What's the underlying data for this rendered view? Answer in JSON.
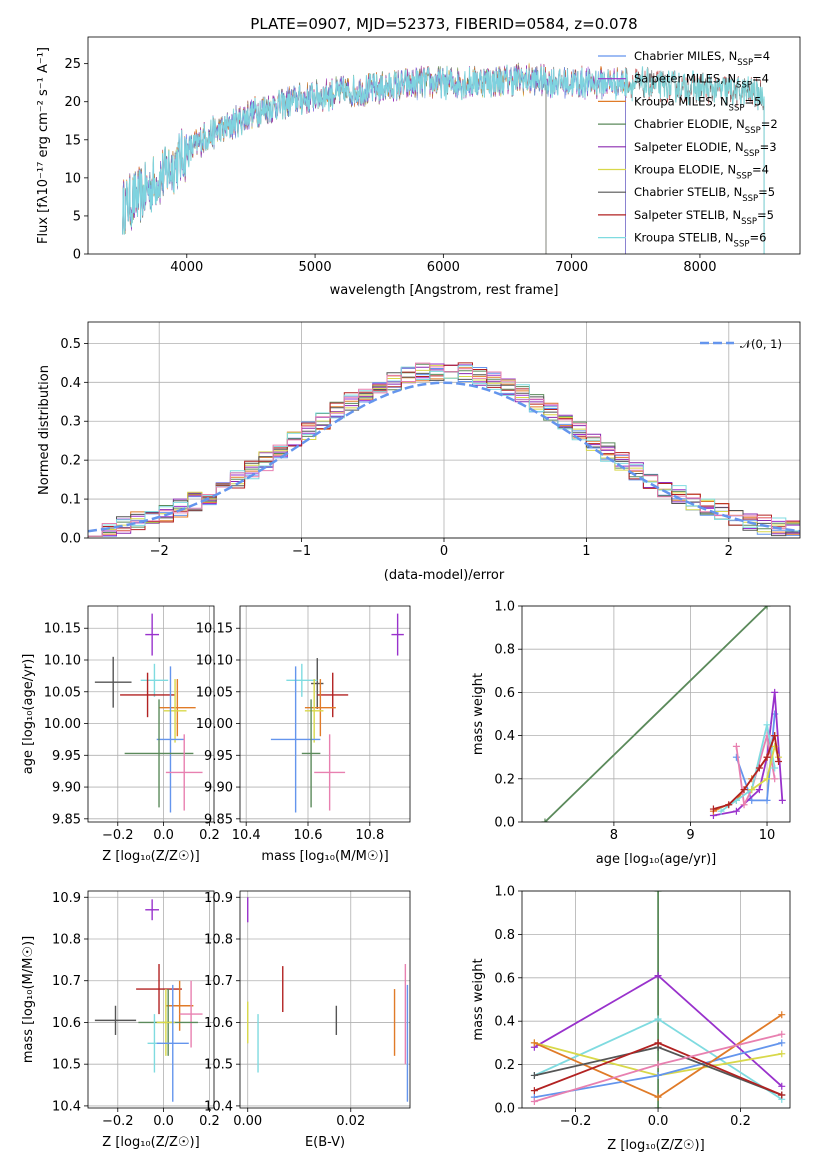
{
  "figure": {
    "title": "PLATE=0907, MJD=52373, FIBERID=0584, z=0.078"
  },
  "colors": {
    "Chabrier MILES": "#6495ED",
    "Salpeter MILES": "#9932CC",
    "Kroupa MILES": "#E07B28",
    "Chabrier ELODIE": "#5B8A5B",
    "Salpeter ELODIE": "#8B2BB0",
    "Kroupa ELODIE": "#D8D84A",
    "Chabrier STELIB": "#555555",
    "Salpeter STELIB": "#B22222",
    "Kroupa STELIB": "#7FDBE0",
    "pink": "#E880B0",
    "gauss": "#6495ED"
  },
  "chart_data": [
    {
      "type": "line",
      "name": "spectrum",
      "xlabel": "wavelength [Angstrom, rest frame]",
      "ylabel": "Flux [f_λ 10^-17 erg cm^-2 s^-1 A^-1]",
      "xlim": [
        3230,
        8780
      ],
      "ylim": [
        0,
        28.5
      ],
      "xticks": [
        4000,
        5000,
        6000,
        7000,
        8000
      ],
      "yticks": [
        0,
        5,
        10,
        15,
        20,
        25
      ],
      "grid": false,
      "legend_position": "right",
      "continuum_knots": {
        "x": [
          3500,
          3700,
          3850,
          3950,
          4050,
          4150,
          4300,
          4500,
          4800,
          5100,
          5400,
          5800,
          6200,
          6600,
          7000,
          7400,
          7800,
          8200,
          8500
        ],
        "y": [
          6,
          8.5,
          11,
          12.5,
          14,
          15.5,
          16.5,
          18.5,
          20,
          21,
          21.5,
          22.5,
          22.5,
          23,
          22.5,
          22.5,
          22,
          21.5,
          21
        ]
      },
      "series": [
        {
          "name": "Chabrier MILES",
          "legend": "Chabrier MILES, N_SSP=4",
          "end": 7420
        },
        {
          "name": "Salpeter MILES",
          "legend": "Salpeter MILES, N_SSP=4",
          "end": 7420
        },
        {
          "name": "Kroupa MILES",
          "legend": "Kroupa MILES, N_SSP=5",
          "end": 7420
        },
        {
          "name": "Chabrier ELODIE",
          "legend": "Chabrier ELODIE, N_SSP=2",
          "end": 6800
        },
        {
          "name": "Salpeter ELODIE",
          "legend": "Salpeter ELODIE, N_SSP=3",
          "end": 6800
        },
        {
          "name": "Kroupa ELODIE",
          "legend": "Kroupa ELODIE, N_SSP=4",
          "end": 6800
        },
        {
          "name": "Chabrier STELIB",
          "legend": "Chabrier STELIB, N_SSP=5",
          "end": 8500
        },
        {
          "name": "Salpeter STELIB",
          "legend": "Salpeter STELIB, N_SSP=5",
          "end": 8500
        },
        {
          "name": "Kroupa STELIB",
          "legend": "Kroupa STELIB, N_SSP=6",
          "end": 8500
        }
      ]
    },
    {
      "type": "bar",
      "name": "residuals",
      "xlabel": "(data-model)/error",
      "ylabel": "Normed distribution",
      "xlim": [
        -2.5,
        2.5
      ],
      "ylim": [
        0,
        0.555
      ],
      "xticks": [
        -2,
        -1,
        0,
        1,
        2
      ],
      "yticks": [
        0.0,
        0.1,
        0.2,
        0.3,
        0.4,
        0.5
      ],
      "grid": true,
      "legend_position": "top-right",
      "legend": "𝒩(0, 1)",
      "bins": 50,
      "profile_sigma": 1.0,
      "profile_peak": 0.43
    },
    {
      "type": "scatter",
      "name": "age-vs-Z",
      "xlabel": "Z [log10(Z/Z☉)]",
      "ylabel": "age  [log10(age/yr)]",
      "xlim": [
        -0.33,
        0.22
      ],
      "ylim": [
        9.845,
        10.185
      ],
      "xticks": [
        -0.2,
        0.0,
        0.2
      ],
      "yticks": [
        9.85,
        9.9,
        9.95,
        10.0,
        10.05,
        10.1,
        10.15
      ],
      "grid": true,
      "points": [
        {
          "color": "Salpeter MILES",
          "x": -0.05,
          "y": 10.14,
          "xerr": 0.03,
          "yerr": 0.033
        },
        {
          "color": "Chabrier STELIB",
          "x": -0.22,
          "y": 10.065,
          "xerr": 0.08,
          "yerr": 0.04
        },
        {
          "color": "Kroupa STELIB",
          "x": -0.04,
          "y": 10.068,
          "xerr": 0.06,
          "yerr": 0.026
        },
        {
          "color": "Salpeter STELIB",
          "x": -0.07,
          "y": 10.045,
          "xerr": 0.12,
          "yerr": 0.035
        },
        {
          "color": "Kroupa MILES",
          "x": 0.06,
          "y": 10.025,
          "xerr": 0.08,
          "yerr": 0.045
        },
        {
          "color": "Kroupa ELODIE",
          "x": 0.05,
          "y": 10.02,
          "xerr": 0.05,
          "yerr": 0.05
        },
        {
          "color": "Chabrier MILES",
          "x": 0.03,
          "y": 9.975,
          "xerr": 0.06,
          "yerr": 0.115
        },
        {
          "color": "Chabrier ELODIE",
          "x": -0.02,
          "y": 9.953,
          "xerr": 0.15,
          "yerr": 0.085
        },
        {
          "color": "pink",
          "x": 0.09,
          "y": 9.923,
          "xerr": 0.08,
          "yerr": 0.06
        }
      ]
    },
    {
      "type": "scatter",
      "name": "age-vs-mass",
      "xlabel": "mass [log10(M/M☉)]",
      "ylabel": "",
      "xlim": [
        10.38,
        10.93
      ],
      "ylim": [
        9.845,
        10.185
      ],
      "xticks": [
        10.4,
        10.6,
        10.8
      ],
      "yticks": [
        9.85,
        9.9,
        9.95,
        10.0,
        10.05,
        10.1,
        10.15
      ],
      "grid": true,
      "points": [
        {
          "color": "Salpeter MILES",
          "x": 10.89,
          "y": 10.14,
          "xerr": 0.02,
          "yerr": 0.033
        },
        {
          "color": "Chabrier STELIB",
          "x": 10.63,
          "y": 10.063,
          "xerr": 0.02,
          "yerr": 0.04
        },
        {
          "color": "Kroupa STELIB",
          "x": 10.58,
          "y": 10.068,
          "xerr": 0.05,
          "yerr": 0.026
        },
        {
          "color": "Salpeter STELIB",
          "x": 10.68,
          "y": 10.045,
          "xerr": 0.05,
          "yerr": 0.035
        },
        {
          "color": "Kroupa MILES",
          "x": 10.64,
          "y": 10.025,
          "xerr": 0.05,
          "yerr": 0.045
        },
        {
          "color": "Kroupa ELODIE",
          "x": 10.62,
          "y": 10.02,
          "xerr": 0.03,
          "yerr": 0.05
        },
        {
          "color": "Chabrier MILES",
          "x": 10.56,
          "y": 9.975,
          "xerr": 0.08,
          "yerr": 0.115
        },
        {
          "color": "Chabrier ELODIE",
          "x": 10.61,
          "y": 9.953,
          "xerr": 0.03,
          "yerr": 0.085
        },
        {
          "color": "pink",
          "x": 10.67,
          "y": 9.923,
          "xerr": 0.05,
          "yerr": 0.06
        }
      ]
    },
    {
      "type": "line",
      "name": "mass-weight-vs-age",
      "xlabel": "age  [log10(age/yr)]",
      "ylabel": "mass weight",
      "xlim": [
        6.8,
        10.3
      ],
      "ylim": [
        0,
        1.0
      ],
      "xticks": [
        8,
        9,
        10
      ],
      "yticks": [
        0.0,
        0.2,
        0.4,
        0.6,
        0.8,
        1.0
      ],
      "grid": true,
      "series": [
        {
          "color": "Chabrier ELODIE",
          "x": [
            7.1,
            10.0
          ],
          "y": [
            0.0,
            1.0
          ]
        },
        {
          "color": "Chabrier MILES",
          "x": [
            9.6,
            9.8,
            10.0,
            10.1
          ],
          "y": [
            0.3,
            0.1,
            0.1,
            0.5
          ]
        },
        {
          "color": "Salpeter MILES",
          "x": [
            9.3,
            9.6,
            9.9,
            10.0,
            10.1,
            10.2
          ],
          "y": [
            0.03,
            0.05,
            0.15,
            0.3,
            0.6,
            0.1
          ]
        },
        {
          "color": "Kroupa MILES",
          "x": [
            9.3,
            9.6,
            9.8,
            10.0,
            10.1
          ],
          "y": [
            0.05,
            0.1,
            0.2,
            0.3,
            0.4
          ]
        },
        {
          "color": "pink",
          "x": [
            9.6,
            9.7,
            9.8,
            10.0,
            10.1
          ],
          "y": [
            0.35,
            0.08,
            0.15,
            0.4,
            0.2
          ]
        },
        {
          "color": "Kroupa STELIB",
          "x": [
            9.4,
            9.6,
            9.8,
            10.0,
            10.1
          ],
          "y": [
            0.05,
            0.1,
            0.15,
            0.45,
            0.25
          ]
        },
        {
          "color": "Kroupa ELODIE",
          "x": [
            9.8,
            10.0,
            10.1,
            10.15
          ],
          "y": [
            0.15,
            0.2,
            0.35,
            0.3
          ]
        },
        {
          "color": "Salpeter STELIB",
          "x": [
            9.3,
            9.5,
            9.7,
            9.9,
            10.0,
            10.1,
            10.15
          ],
          "y": [
            0.06,
            0.08,
            0.15,
            0.25,
            0.3,
            0.4,
            0.28
          ]
        }
      ]
    },
    {
      "type": "scatter",
      "name": "mass-vs-Z",
      "xlabel": "Z [log10(Z/Z☉)]",
      "ylabel": "mass [log10(M/M☉)]",
      "xlim": [
        -0.33,
        0.22
      ],
      "ylim": [
        10.395,
        10.915
      ],
      "xticks": [
        -0.2,
        0.0,
        0.2
      ],
      "yticks": [
        10.4,
        10.5,
        10.6,
        10.7,
        10.8,
        10.9
      ],
      "grid": true,
      "points": [
        {
          "color": "Salpeter MILES",
          "x": -0.05,
          "y": 10.87,
          "xerr": 0.03,
          "yerr": 0.025
        },
        {
          "color": "Salpeter STELIB",
          "x": -0.02,
          "y": 10.68,
          "xerr": 0.1,
          "yerr": 0.06
        },
        {
          "color": "Kroupa MILES",
          "x": 0.07,
          "y": 10.64,
          "xerr": 0.06,
          "yerr": 0.06
        },
        {
          "color": "pink",
          "x": 0.12,
          "y": 10.62,
          "xerr": 0.05,
          "yerr": 0.08
        },
        {
          "color": "Chabrier STELIB",
          "x": -0.21,
          "y": 10.605,
          "xerr": 0.09,
          "yerr": 0.035
        },
        {
          "color": "Chabrier ELODIE",
          "x": 0.02,
          "y": 10.6,
          "xerr": 0.13,
          "yerr": 0.08
        },
        {
          "color": "Kroupa ELODIE",
          "x": 0.01,
          "y": 10.6,
          "xerr": 0.04,
          "yerr": 0.08
        },
        {
          "color": "Kroupa STELIB",
          "x": -0.04,
          "y": 10.55,
          "xerr": 0.03,
          "yerr": 0.07
        },
        {
          "color": "Chabrier MILES",
          "x": 0.04,
          "y": 10.55,
          "xerr": 0.07,
          "yerr": 0.14
        }
      ]
    },
    {
      "type": "scatter",
      "name": "mass-vs-EBV",
      "xlabel": "E(B-V)",
      "ylabel": "",
      "xlim": [
        -0.0015,
        0.0315
      ],
      "ylim": [
        10.395,
        10.915
      ],
      "xticks": [
        0.0,
        0.02
      ],
      "yticks": [
        10.4,
        10.5,
        10.6,
        10.7,
        10.8,
        10.9
      ],
      "grid": true,
      "points": [
        {
          "color": "Salpeter MILES",
          "x": 0.0,
          "y": 10.87,
          "xerr": 0,
          "yerr": 0.03
        },
        {
          "color": "Kroupa ELODIE",
          "x": 0.0,
          "y": 10.6,
          "xerr": 0,
          "yerr": 0.05
        },
        {
          "color": "Kroupa STELIB",
          "x": 0.002,
          "y": 10.55,
          "xerr": 0,
          "yerr": 0.07
        },
        {
          "color": "Salpeter STELIB",
          "x": 0.0068,
          "y": 10.68,
          "xerr": 0,
          "yerr": 0.055
        },
        {
          "color": "Chabrier STELIB",
          "x": 0.0172,
          "y": 10.605,
          "xerr": 0,
          "yerr": 0.035
        },
        {
          "color": "Kroupa MILES",
          "x": 0.0285,
          "y": 10.6,
          "xerr": 0,
          "yerr": 0.08
        },
        {
          "color": "pink",
          "x": 0.0306,
          "y": 10.62,
          "xerr": 0,
          "yerr": 0.12
        },
        {
          "color": "Chabrier MILES",
          "x": 0.031,
          "y": 10.55,
          "xerr": 0,
          "yerr": 0.14
        }
      ]
    },
    {
      "type": "line",
      "name": "mass-weight-vs-Z",
      "xlabel": "Z [log10(Z/Z☉)]",
      "ylabel": "mass weight",
      "xlim": [
        -0.33,
        0.32
      ],
      "ylim": [
        0,
        1.0
      ],
      "xticks": [
        -0.2,
        0.0,
        0.2
      ],
      "yticks": [
        0.0,
        0.2,
        0.4,
        0.6,
        0.8,
        1.0
      ],
      "grid": true,
      "series": [
        {
          "color": "Chabrier ELODIE",
          "x": [
            0.0,
            0.0
          ],
          "y": [
            0.0,
            1.0
          ]
        },
        {
          "color": "Salpeter MILES",
          "x": [
            -0.3,
            0.0,
            0.3
          ],
          "y": [
            0.28,
            0.61,
            0.1
          ]
        },
        {
          "color": "Kroupa STELIB",
          "x": [
            -0.3,
            0.0,
            0.3
          ],
          "y": [
            0.15,
            0.41,
            0.04
          ]
        },
        {
          "color": "Kroupa ELODIE",
          "x": [
            -0.3,
            0.0,
            0.3
          ],
          "y": [
            0.3,
            0.15,
            0.25
          ]
        },
        {
          "color": "Chabrier MILES",
          "x": [
            -0.3,
            0.0,
            0.3
          ],
          "y": [
            0.05,
            0.15,
            0.3
          ]
        },
        {
          "color": "Kroupa MILES",
          "x": [
            -0.3,
            0.0,
            0.3
          ],
          "y": [
            0.3,
            0.05,
            0.43
          ]
        },
        {
          "color": "Chabrier STELIB",
          "x": [
            -0.3,
            0.0,
            0.3
          ],
          "y": [
            0.15,
            0.28,
            0.06
          ]
        },
        {
          "color": "Salpeter STELIB",
          "x": [
            -0.3,
            0.0,
            0.3
          ],
          "y": [
            0.08,
            0.3,
            0.06
          ]
        },
        {
          "color": "pink",
          "x": [
            -0.3,
            0.0,
            0.3
          ],
          "y": [
            0.03,
            0.2,
            0.34
          ]
        }
      ]
    }
  ]
}
